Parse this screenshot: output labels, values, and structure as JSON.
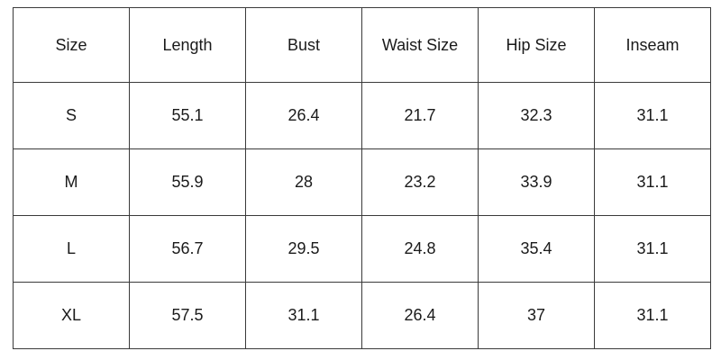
{
  "table": {
    "header": [
      "Size",
      "Length",
      "Bust",
      "Waist Size",
      "Hip Size",
      "Inseam"
    ],
    "rows": [
      [
        "S",
        "55.1",
        "26.4",
        "21.7",
        "32.3",
        "31.1"
      ],
      [
        "M",
        "55.9",
        "28",
        "23.2",
        "33.9",
        "31.1"
      ],
      [
        "L",
        "56.7",
        "29.5",
        "24.8",
        "35.4",
        "31.1"
      ],
      [
        "XL",
        "57.5",
        "31.1",
        "26.4",
        "37",
        "31.1"
      ]
    ]
  }
}
